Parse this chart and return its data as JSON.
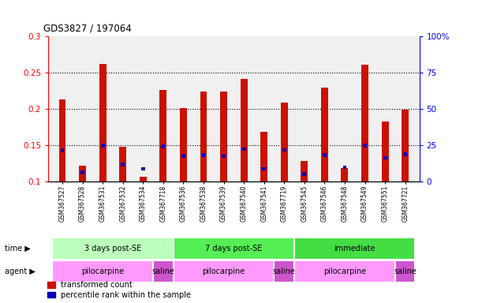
{
  "title": "GDS3827 / 197064",
  "samples": [
    "GSM367527",
    "GSM367528",
    "GSM367531",
    "GSM367532",
    "GSM367534",
    "GSM367718",
    "GSM367536",
    "GSM367538",
    "GSM367539",
    "GSM367540",
    "GSM367541",
    "GSM367719",
    "GSM367545",
    "GSM367546",
    "GSM367548",
    "GSM367549",
    "GSM367551",
    "GSM367721"
  ],
  "red_values": [
    0.213,
    0.122,
    0.262,
    0.148,
    0.107,
    0.226,
    0.201,
    0.224,
    0.224,
    0.241,
    0.169,
    0.209,
    0.129,
    0.23,
    0.119,
    0.261,
    0.183,
    0.199
  ],
  "blue_values": [
    0.143,
    0.113,
    0.15,
    0.124,
    0.118,
    0.149,
    0.136,
    0.137,
    0.135,
    0.145,
    0.118,
    0.144,
    0.111,
    0.137,
    0.12,
    0.15,
    0.133,
    0.138
  ],
  "ylim_left": [
    0.1,
    0.3
  ],
  "ylim_right": [
    0,
    100
  ],
  "yticks_left": [
    0.1,
    0.15,
    0.2,
    0.25,
    0.3
  ],
  "yticks_right": [
    0,
    25,
    50,
    75,
    100
  ],
  "ytick_labels_left": [
    "0.1",
    "0.15",
    "0.2",
    "0.25",
    "0.3"
  ],
  "ytick_labels_right": [
    "0",
    "25",
    "50",
    "75",
    "100%"
  ],
  "time_groups": [
    {
      "label": "3 days post-SE",
      "start": 0,
      "end": 6,
      "color": "#bbffbb"
    },
    {
      "label": "7 days post-SE",
      "start": 6,
      "end": 12,
      "color": "#55ee55"
    },
    {
      "label": "immediate",
      "start": 12,
      "end": 18,
      "color": "#44dd44"
    }
  ],
  "agent_groups": [
    {
      "label": "pilocarpine",
      "start": 0,
      "end": 5,
      "color": "#ff99ff"
    },
    {
      "label": "saline",
      "start": 5,
      "end": 6,
      "color": "#cc55cc"
    },
    {
      "label": "pilocarpine",
      "start": 6,
      "end": 11,
      "color": "#ff99ff"
    },
    {
      "label": "saline",
      "start": 11,
      "end": 12,
      "color": "#cc55cc"
    },
    {
      "label": "pilocarpine",
      "start": 12,
      "end": 17,
      "color": "#ff99ff"
    },
    {
      "label": "saline",
      "start": 17,
      "end": 18,
      "color": "#cc55cc"
    }
  ],
  "bar_color_red": "#cc1100",
  "bar_color_blue": "#0000bb",
  "bar_width": 0.35,
  "bg_color": "#f0f0f0",
  "legend_red": "transformed count",
  "legend_blue": "percentile rank within the sample",
  "label_time": "time",
  "label_agent": "agent"
}
